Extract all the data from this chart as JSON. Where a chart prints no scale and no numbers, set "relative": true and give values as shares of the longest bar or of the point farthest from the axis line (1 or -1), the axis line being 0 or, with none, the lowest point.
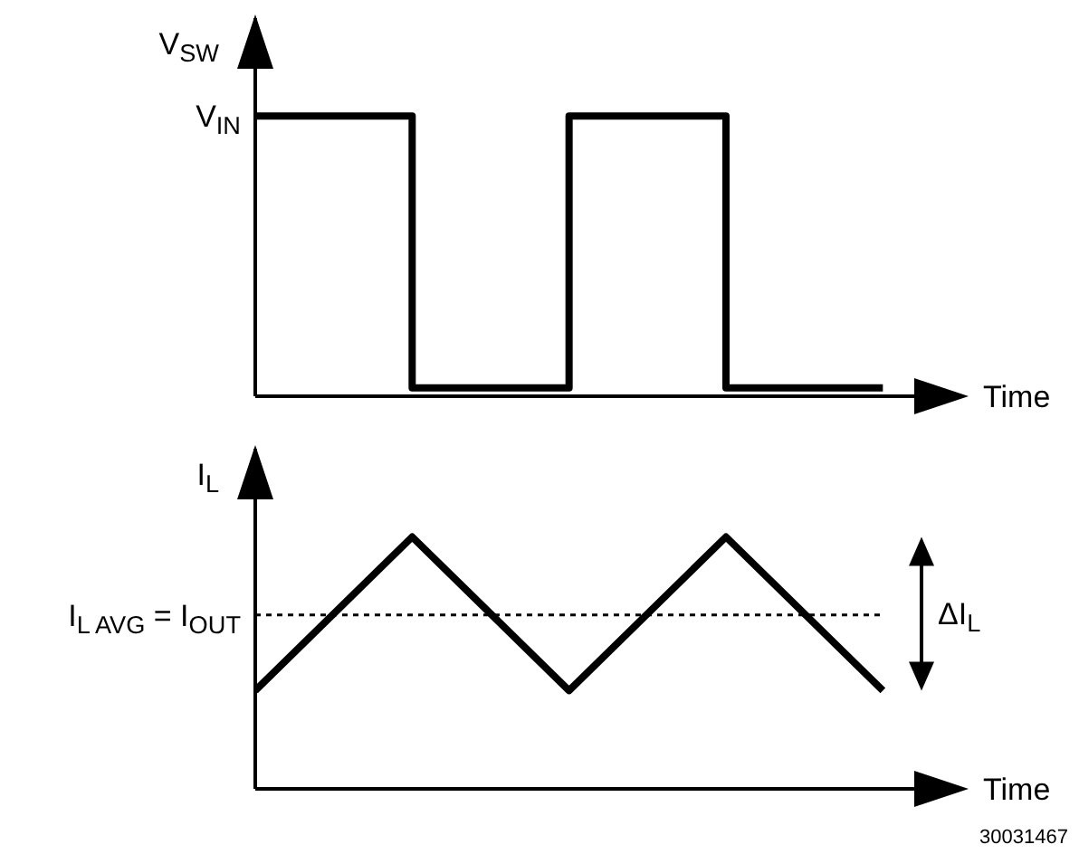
{
  "chart_data": [
    {
      "type": "step",
      "ylabel": "V$_{SW}$",
      "xlabel": "Time",
      "categories": [
        null,
        null,
        null,
        null,
        null
      ],
      "relative": true,
      "marker": "none",
      "line_style": "solid",
      "series": [
        {
          "color": "#000000",
          "values": [
            1,
            0.03,
            1,
            0.03,
            0.03
          ]
        }
      ],
      "annotations": [
        "V$_{IN}$"
      ]
    },
    {
      "type": "line",
      "ylabel": "I$_{L}$",
      "xlabel": "Time",
      "categories": [
        null,
        null,
        null,
        null,
        null
      ],
      "relative": true,
      "marker": "none",
      "line_style": "solid",
      "series": [
        {
          "color": "#000000",
          "values": [
            0.39,
            1,
            0.39,
            1,
            0.39
          ]
        }
      ],
      "ref_lines": [
        {
          "axis": "y",
          "value": 0.69,
          "label": "I$_{L AVG}$ = I$_{OUT}$",
          "color": "#000000",
          "line_style": "dotted"
        }
      ],
      "annotations": [
        "ΔI$_{L}$",
        "30031467"
      ]
    }
  ]
}
